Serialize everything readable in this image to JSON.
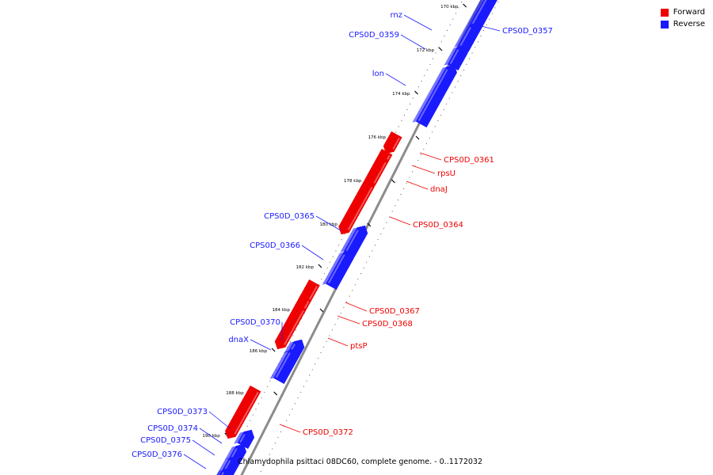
{
  "caption": "Chlamydophila psittaci 08DC60, complete genome. - 0..1172032",
  "legend": [
    {
      "label": "Forward",
      "color": "#ee0000"
    },
    {
      "label": "Reverse",
      "color": "#0000ee"
    }
  ],
  "colors": {
    "forward": "#ee0000",
    "reverse": "#1a1aff",
    "backbone": "#8c8c8c",
    "tick": "#000000"
  },
  "ticks": [
    "170 kbp",
    "172 kbp",
    "174 kbp",
    "176 kbp",
    "178 kbp",
    "180 kbp",
    "182 kbp",
    "184 kbp",
    "186 kbp",
    "188 kbp",
    "190 kbp"
  ],
  "genes": [
    {
      "label": "",
      "strand": "reverse"
    },
    {
      "label": "rnz",
      "strand": "reverse"
    },
    {
      "label": "CPS0D_0357",
      "strand": "reverse"
    },
    {
      "label": "CPS0D_0359",
      "strand": "reverse"
    },
    {
      "label": "lon",
      "strand": "reverse"
    },
    {
      "label": "CPS0D_0361",
      "strand": "forward"
    },
    {
      "label": "rpsU",
      "strand": "forward"
    },
    {
      "label": "dnaJ",
      "strand": "forward"
    },
    {
      "label": "CPS0D_0364",
      "strand": "forward"
    },
    {
      "label": "CPS0D_0365",
      "strand": "reverse"
    },
    {
      "label": "CPS0D_0366",
      "strand": "reverse"
    },
    {
      "label": "CPS0D_0367",
      "strand": "forward"
    },
    {
      "label": "CPS0D_0368",
      "strand": "forward"
    },
    {
      "label": "ptsP",
      "strand": "forward"
    },
    {
      "label": "CPS0D_0370",
      "strand": "reverse"
    },
    {
      "label": "dnaX",
      "strand": "reverse"
    },
    {
      "label": "CPS0D_0372",
      "strand": "forward"
    },
    {
      "label": "CPS0D_0373",
      "strand": "reverse"
    },
    {
      "label": "CPS0D_0374",
      "strand": "reverse"
    },
    {
      "label": "CPS0D_0375",
      "strand": "reverse"
    },
    {
      "label": "CPS0D_0376",
      "strand": "reverse"
    },
    {
      "label": "",
      "strand": "reverse"
    }
  ]
}
